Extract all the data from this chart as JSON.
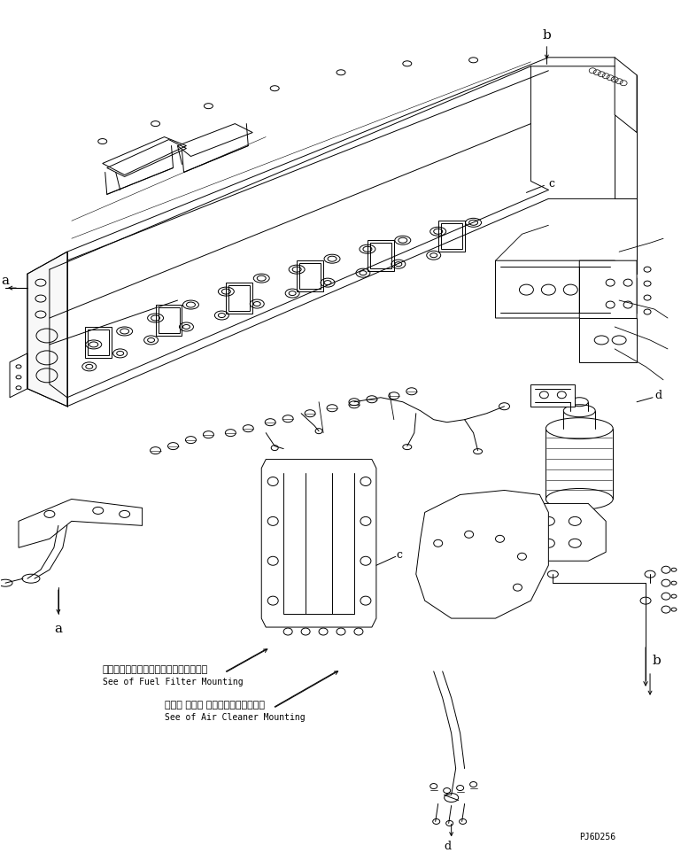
{
  "bg_color": "#ffffff",
  "lc": "#000000",
  "lw": 0.7,
  "fig_w": 7.69,
  "fig_h": 9.63,
  "note1_jp": "フェエンファイルタマウンティング参照",
  "note1_en": "See of Fuel Filter Mounting",
  "note2_jp": "エアー クリー ナマウンティング参照",
  "note2_en": "See of Air Cleaner Mounting",
  "code": "PJ6D256"
}
